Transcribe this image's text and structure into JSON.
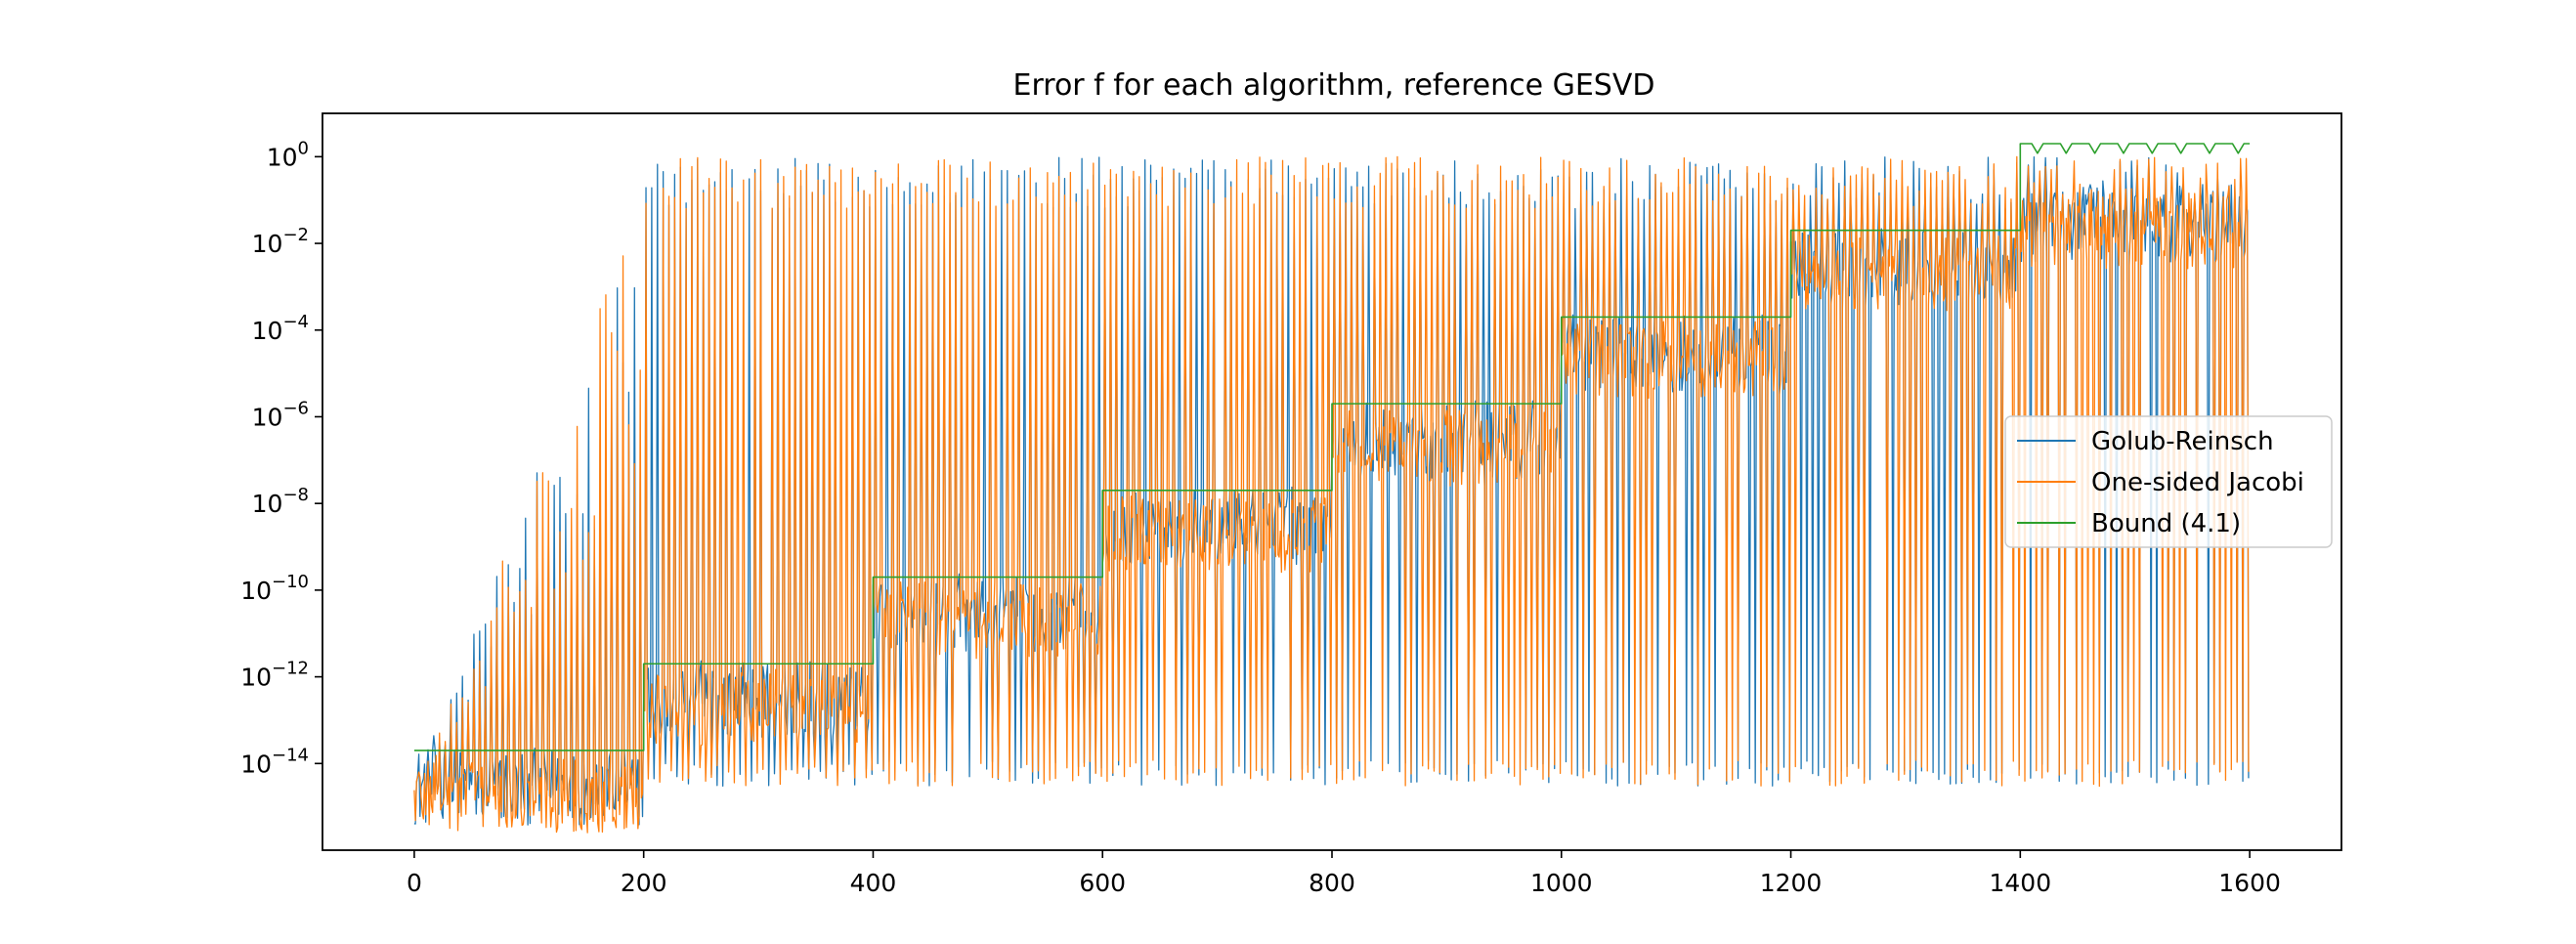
{
  "chart_data": {
    "type": "line",
    "title": "Error f for each algorithm, reference GESVD",
    "xlabel": "",
    "ylabel": "",
    "xlim": [
      -80,
      1680
    ],
    "ylim": [
      1e-16,
      10
    ],
    "yscale": "log",
    "x_ticks": [
      0,
      200,
      400,
      600,
      800,
      1000,
      1200,
      1400,
      1600
    ],
    "x_tick_labels": [
      "0",
      "200",
      "400",
      "600",
      "800",
      "1000",
      "1200",
      "1400",
      "1600"
    ],
    "y_tick_exponents": [
      0,
      -2,
      -4,
      -6,
      -8,
      -10,
      -12,
      -14
    ],
    "y_tick_base": "10",
    "y_tick_exponent_labels": [
      "0",
      "−2",
      "−4",
      "−6",
      "−8",
      "−10",
      "−12",
      "−14"
    ],
    "grid": false,
    "legend_position": "center-right",
    "n_points": 1600,
    "segment_length": 200,
    "series": [
      {
        "name": "Golub-Reinsch",
        "color": "#1f77b4",
        "segment_baselines": [
          3e-15,
          3e-13,
          3e-11,
          3e-09,
          3e-07,
          3e-05,
          0.003,
          0.03
        ],
        "spike_peak": 1.0,
        "spike_min": 3e-15
      },
      {
        "name": "One-sided Jacobi",
        "color": "#ff7f0e",
        "segment_baselines": [
          2e-15,
          2e-13,
          2e-11,
          2e-09,
          2e-07,
          2e-05,
          0.002,
          0.02
        ],
        "spike_peak": 1.0,
        "spike_min": 3e-15
      },
      {
        "name": "Bound (4.1)",
        "color": "#2ca02c",
        "x": [
          0,
          200,
          200,
          400,
          400,
          600,
          600,
          800,
          800,
          1000,
          1000,
          1200,
          1200,
          1400,
          1400,
          1600
        ],
        "values": [
          2e-14,
          2e-14,
          2e-12,
          2e-12,
          2e-10,
          2e-10,
          2e-08,
          2e-08,
          2e-06,
          2e-06,
          0.0002,
          0.0002,
          0.02,
          0.02,
          2.0,
          2.0
        ],
        "oscillation_range": [
          1400,
          1600
        ],
        "oscillation_low": 1.2
      }
    ]
  }
}
